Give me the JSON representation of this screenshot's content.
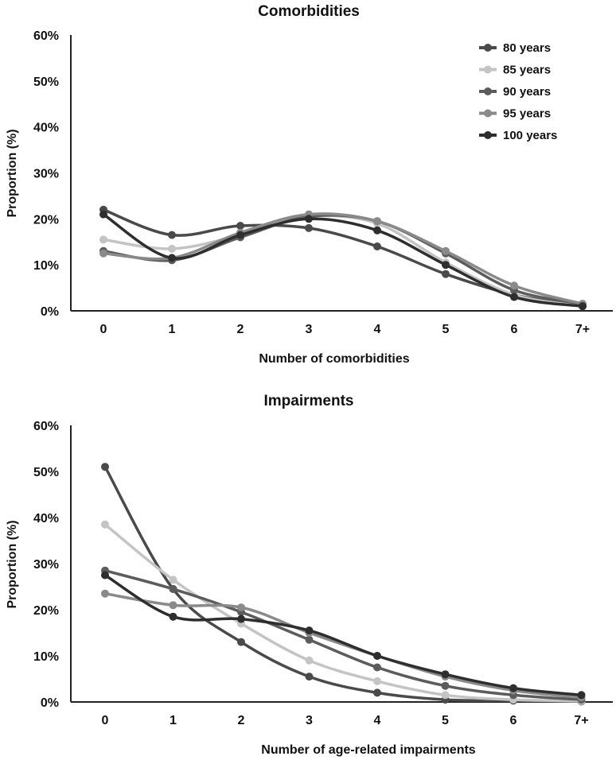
{
  "chart_data": [
    {
      "type": "line",
      "title": "Comorbidities",
      "xlabel": "Number of comorbidities",
      "ylabel": "Proportion (%)",
      "categories": [
        "0",
        "1",
        "2",
        "3",
        "4",
        "5",
        "6",
        "7+"
      ],
      "ylim": [
        0,
        60
      ],
      "yticks": [
        "0%",
        "10%",
        "20%",
        "30%",
        "40%",
        "50%",
        "60%"
      ],
      "legend_position": "top-right",
      "series": [
        {
          "name": "80 years",
          "color": "#4a4a4a",
          "values": [
            22,
            16.5,
            18.5,
            18,
            14,
            8,
            3.5,
            1
          ]
        },
        {
          "name": "85 years",
          "color": "#c4c4c4",
          "values": [
            15.5,
            13.5,
            16.5,
            20.5,
            19,
            10.5,
            3.5,
            1
          ]
        },
        {
          "name": "90 years",
          "color": "#5c5c5c",
          "values": [
            13,
            11,
            16,
            20.5,
            19.5,
            12.5,
            4.5,
            1.5
          ]
        },
        {
          "name": "95 years",
          "color": "#8a8a8a",
          "values": [
            12.5,
            11.5,
            17,
            21,
            19.5,
            13,
            5.5,
            1.5
          ]
        },
        {
          "name": "100 years",
          "color": "#2e2e2e",
          "values": [
            21,
            11.5,
            16.5,
            20,
            17.5,
            10,
            3,
            1
          ]
        }
      ]
    },
    {
      "type": "line",
      "title": "Impairments",
      "xlabel": "Number of age-related impairments",
      "ylabel": "Proportion (%)",
      "categories": [
        "0",
        "1",
        "2",
        "3",
        "4",
        "5",
        "6",
        "7+"
      ],
      "ylim": [
        0,
        60
      ],
      "yticks": [
        "0%",
        "10%",
        "20%",
        "30%",
        "40%",
        "50%",
        "60%"
      ],
      "series": [
        {
          "name": "80 years",
          "color": "#4a4a4a",
          "values": [
            51,
            24.5,
            13,
            5.5,
            2,
            0.5,
            0.3,
            0.1
          ]
        },
        {
          "name": "85 years",
          "color": "#c4c4c4",
          "values": [
            38.5,
            26.5,
            17,
            9,
            4.5,
            1.5,
            0.5,
            0.2
          ]
        },
        {
          "name": "90 years",
          "color": "#5c5c5c",
          "values": [
            28.5,
            24.5,
            19.5,
            13.5,
            7.5,
            3.5,
            1.5,
            0.5
          ]
        },
        {
          "name": "95 years",
          "color": "#8a8a8a",
          "values": [
            23.5,
            21,
            20.5,
            15,
            10,
            5.5,
            2.5,
            1
          ]
        },
        {
          "name": "100 years",
          "color": "#2e2e2e",
          "values": [
            27.5,
            18.5,
            18,
            15.5,
            10,
            6,
            3,
            1.5
          ]
        }
      ]
    }
  ]
}
